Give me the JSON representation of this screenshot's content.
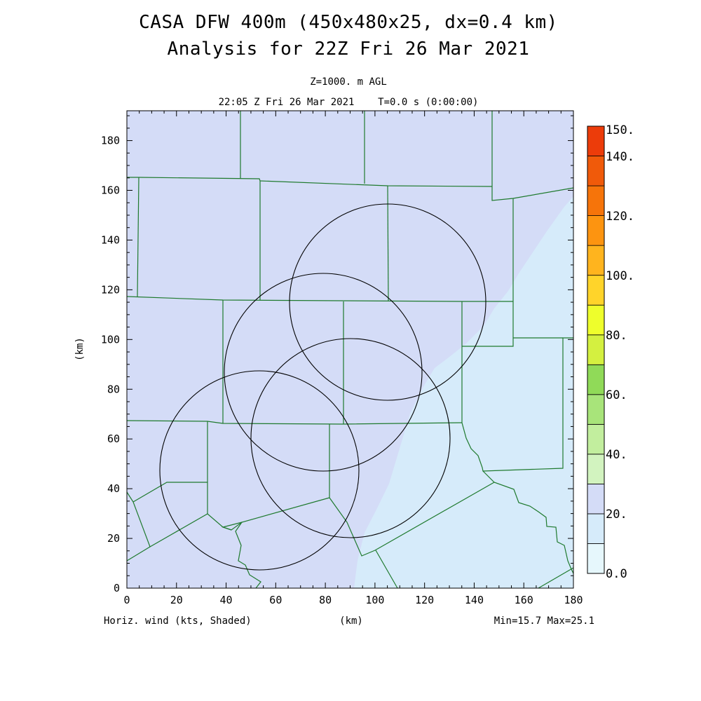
{
  "header": {
    "title_line1": "CASA DFW 400m (450x480x25, dx=0.4 km)",
    "title_line2": "Analysis for 22Z Fri 26 Mar 2021",
    "level": "Z=1000. m AGL",
    "valid_time": "22:05 Z Fri 26 Mar 2021    T=0.0 s (0:00:00)"
  },
  "footer": {
    "field_label": "Horiz. wind (kts, Shaded)",
    "x_unit": "(km)",
    "min_max": "Min=15.7 Max=25.1"
  },
  "axes": {
    "y_label": "(km)",
    "x_ticks": [
      "0",
      "20",
      "40",
      "60",
      "80",
      "100",
      "120",
      "140",
      "160",
      "180"
    ],
    "y_ticks": [
      "0",
      "20",
      "40",
      "60",
      "80",
      "100",
      "120",
      "140",
      "160",
      "180"
    ],
    "x_range_km": [
      0,
      180
    ],
    "y_range_km": [
      0,
      192
    ]
  },
  "colorbar": {
    "labels": [
      "0.0",
      "20.",
      "40.",
      "60.",
      "80.",
      "100.",
      "120.",
      "140.",
      "150."
    ],
    "colors": [
      "#e6f7fc",
      "#d6ebfa",
      "#d4dcf7",
      "#d2f3bf",
      "#c2ee9e",
      "#a8e47a",
      "#90da58",
      "#d4f040",
      "#eefe2c",
      "#ffd42a",
      "#ffb41e",
      "#fd9410",
      "#f6740a",
      "#f05a0a",
      "#ec3c0a",
      "#e22408",
      "#d01a06",
      "#ba0a04"
    ]
  },
  "map": {
    "field_colors": {
      "moderate_wind": "#d4dcf7",
      "low_wind": "#d6ebfa"
    },
    "boundary_color": "#1f7a2e",
    "radar_ring_color": "#000000"
  }
}
